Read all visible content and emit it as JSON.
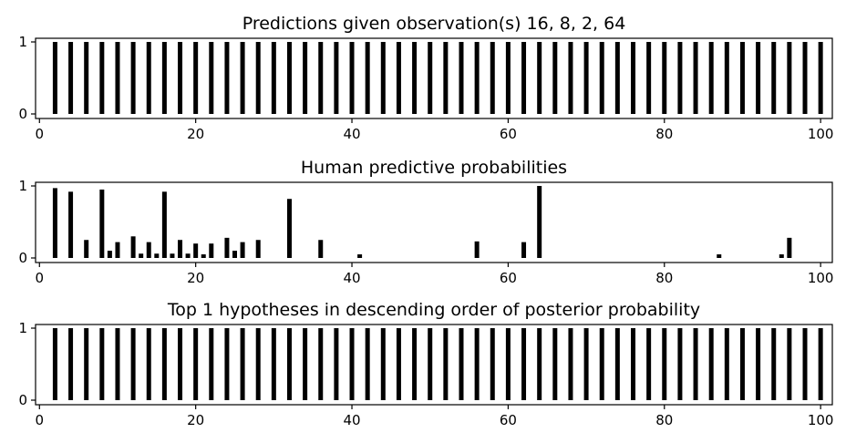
{
  "chart_data": [
    {
      "type": "bar",
      "title": "Predictions given observation(s) 16, 8, 2, 64",
      "xlabel": "",
      "ylabel": "",
      "xlim": [
        -0.5,
        101.5
      ],
      "ylim": [
        0,
        1
      ],
      "xticks": [
        "0",
        "20",
        "40",
        "60",
        "80",
        "100"
      ],
      "yticks": [
        "0",
        "1"
      ],
      "x": [
        2,
        4,
        6,
        8,
        10,
        12,
        14,
        16,
        18,
        20,
        22,
        24,
        26,
        28,
        30,
        32,
        34,
        36,
        38,
        40,
        42,
        44,
        46,
        48,
        50,
        52,
        54,
        56,
        58,
        60,
        62,
        64,
        66,
        68,
        70,
        72,
        74,
        76,
        78,
        80,
        82,
        84,
        86,
        88,
        90,
        92,
        94,
        96,
        98,
        100
      ],
      "values": [
        1,
        1,
        1,
        1,
        1,
        1,
        1,
        1,
        1,
        1,
        1,
        1,
        1,
        1,
        1,
        1,
        1,
        1,
        1,
        1,
        1,
        1,
        1,
        1,
        1,
        1,
        1,
        1,
        1,
        1,
        1,
        1,
        1,
        1,
        1,
        1,
        1,
        1,
        1,
        1,
        1,
        1,
        1,
        1,
        1,
        1,
        1,
        1,
        1,
        1
      ],
      "color": "#000000"
    },
    {
      "type": "bar",
      "title": "Human predictive probabilities",
      "xlabel": "",
      "ylabel": "",
      "xlim": [
        -0.5,
        101.5
      ],
      "ylim": [
        0,
        1
      ],
      "xticks": [
        "0",
        "20",
        "40",
        "60",
        "80",
        "100"
      ],
      "yticks": [
        "0",
        "1"
      ],
      "x": [
        2,
        4,
        6,
        8,
        9,
        10,
        12,
        13,
        14,
        15,
        16,
        17,
        18,
        19,
        20,
        21,
        22,
        24,
        25,
        26,
        28,
        32,
        36,
        41,
        56,
        62,
        64,
        87,
        95,
        96
      ],
      "values": [
        0.97,
        0.92,
        0.25,
        0.95,
        0.1,
        0.22,
        0.3,
        0.06,
        0.22,
        0.06,
        0.92,
        0.06,
        0.25,
        0.06,
        0.2,
        0.05,
        0.2,
        0.28,
        0.1,
        0.22,
        0.25,
        0.82,
        0.25,
        0.05,
        0.23,
        0.22,
        1.0,
        0.05,
        0.05,
        0.28
      ],
      "color": "#000000"
    },
    {
      "type": "bar",
      "title": "Top 1 hypotheses in descending order of posterior probability",
      "xlabel": "",
      "ylabel": "",
      "xlim": [
        -0.5,
        101.5
      ],
      "ylim": [
        0,
        1
      ],
      "xticks": [
        "0",
        "20",
        "40",
        "60",
        "80",
        "100"
      ],
      "yticks": [
        "0",
        "1"
      ],
      "x": [
        2,
        4,
        6,
        8,
        10,
        12,
        14,
        16,
        18,
        20,
        22,
        24,
        26,
        28,
        30,
        32,
        34,
        36,
        38,
        40,
        42,
        44,
        46,
        48,
        50,
        52,
        54,
        56,
        58,
        60,
        62,
        64,
        66,
        68,
        70,
        72,
        74,
        76,
        78,
        80,
        82,
        84,
        86,
        88,
        90,
        92,
        94,
        96,
        98,
        100
      ],
      "values": [
        1,
        1,
        1,
        1,
        1,
        1,
        1,
        1,
        1,
        1,
        1,
        1,
        1,
        1,
        1,
        1,
        1,
        1,
        1,
        1,
        1,
        1,
        1,
        1,
        1,
        1,
        1,
        1,
        1,
        1,
        1,
        1,
        1,
        1,
        1,
        1,
        1,
        1,
        1,
        1,
        1,
        1,
        1,
        1,
        1,
        1,
        1,
        1,
        1,
        1
      ],
      "color": "#000000"
    }
  ]
}
